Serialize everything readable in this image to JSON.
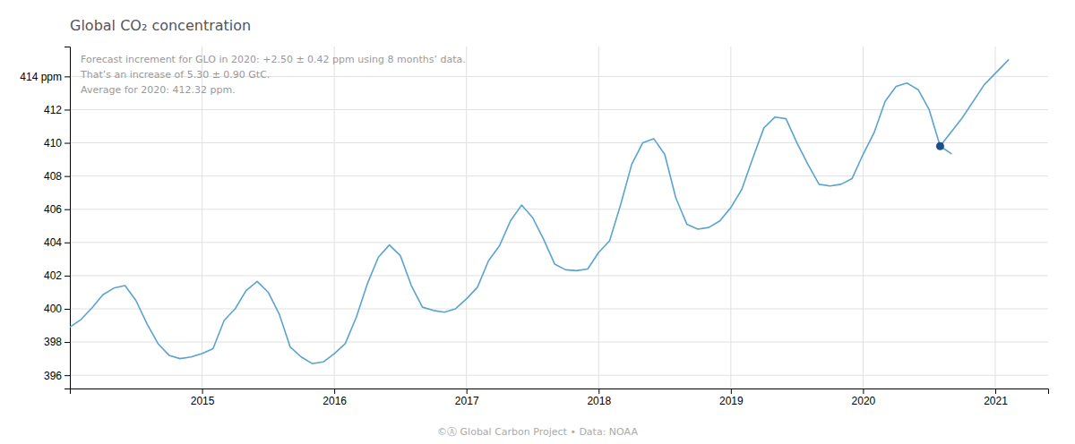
{
  "chart_data": {
    "type": "line",
    "title": "Global CO₂ concentration",
    "annotations": [
      "Forecast increment for GLO in 2020: +2.50 ± 0.42 ppm using 8 months’ data.",
      "That’s an increase of 5.30 ± 0.90 GtC.",
      "Average for 2020: 412.32 ppm."
    ],
    "footer": "©Ⓐ Global Carbon Project  •  Data: NOAA",
    "xlim": [
      2014.0,
      2021.4
    ],
    "ylim": [
      395.2,
      415.8
    ],
    "xticks": [
      2015,
      2016,
      2017,
      2018,
      2019,
      2020,
      2021
    ],
    "yticks": [
      396,
      398,
      400,
      402,
      404,
      406,
      408,
      410,
      412,
      {
        "value": 414,
        "label": "414 ppm"
      }
    ],
    "grid": true,
    "series": [
      {
        "type": "line",
        "color": "#5ba3d0",
        "x": [
          2014.0,
          2014.083,
          2014.167,
          2014.25,
          2014.333,
          2014.417,
          2014.5,
          2014.583,
          2014.667,
          2014.75,
          2014.833,
          2014.917,
          2015.0,
          2015.083,
          2015.167,
          2015.25,
          2015.333,
          2015.417,
          2015.5,
          2015.583,
          2015.667,
          2015.75,
          2015.833,
          2015.917,
          2016.0,
          2016.083,
          2016.167,
          2016.25,
          2016.333,
          2016.417,
          2016.5,
          2016.583,
          2016.667,
          2016.75,
          2016.833,
          2016.917,
          2017.0,
          2017.083,
          2017.167,
          2017.25,
          2017.333,
          2017.417,
          2017.5,
          2017.583,
          2017.667,
          2017.75,
          2017.833,
          2017.917,
          2018.0,
          2018.083,
          2018.167,
          2018.25,
          2018.333,
          2018.417,
          2018.5,
          2018.583,
          2018.667,
          2018.75,
          2018.833,
          2018.917,
          2019.0,
          2019.083,
          2019.167,
          2019.25,
          2019.333,
          2019.417,
          2019.5,
          2019.583,
          2019.667,
          2019.75,
          2019.833,
          2019.917,
          2020.0,
          2020.083,
          2020.167,
          2020.25,
          2020.333,
          2020.417,
          2020.5,
          2020.583,
          2020.667
        ],
        "values": [
          398.9,
          399.35,
          400.05,
          400.85,
          401.25,
          401.4,
          400.5,
          399.1,
          397.9,
          397.2,
          397.0,
          397.1,
          397.3,
          397.6,
          399.3,
          400.0,
          401.1,
          401.65,
          401.0,
          399.7,
          397.7,
          397.1,
          396.7,
          396.8,
          397.3,
          397.9,
          399.5,
          401.5,
          403.1,
          403.85,
          403.2,
          401.4,
          400.1,
          399.9,
          399.8,
          400.0,
          400.6,
          401.3,
          402.9,
          403.8,
          405.3,
          406.25,
          405.5,
          404.2,
          402.7,
          402.35,
          402.3,
          402.4,
          403.4,
          404.1,
          406.3,
          408.7,
          410.0,
          410.25,
          409.3,
          406.7,
          405.1,
          404.8,
          404.9,
          405.3,
          406.1,
          407.2,
          409.1,
          410.9,
          411.55,
          411.45,
          410.0,
          408.7,
          407.5,
          407.4,
          407.5,
          407.85,
          409.3,
          410.6,
          412.5,
          413.4,
          413.6,
          413.2,
          412.0,
          409.8,
          409.35
        ]
      },
      {
        "type": "line",
        "color": "#5ba3d0",
        "x": [
          2020.583,
          2020.75,
          2020.917,
          2021.1
        ],
        "values": [
          409.8,
          411.5,
          413.5,
          415.0
        ]
      },
      {
        "type": "scatter",
        "marker": "circle",
        "color": "#1a4f8a",
        "x": [
          2020.583
        ],
        "values": [
          409.8
        ]
      }
    ]
  }
}
